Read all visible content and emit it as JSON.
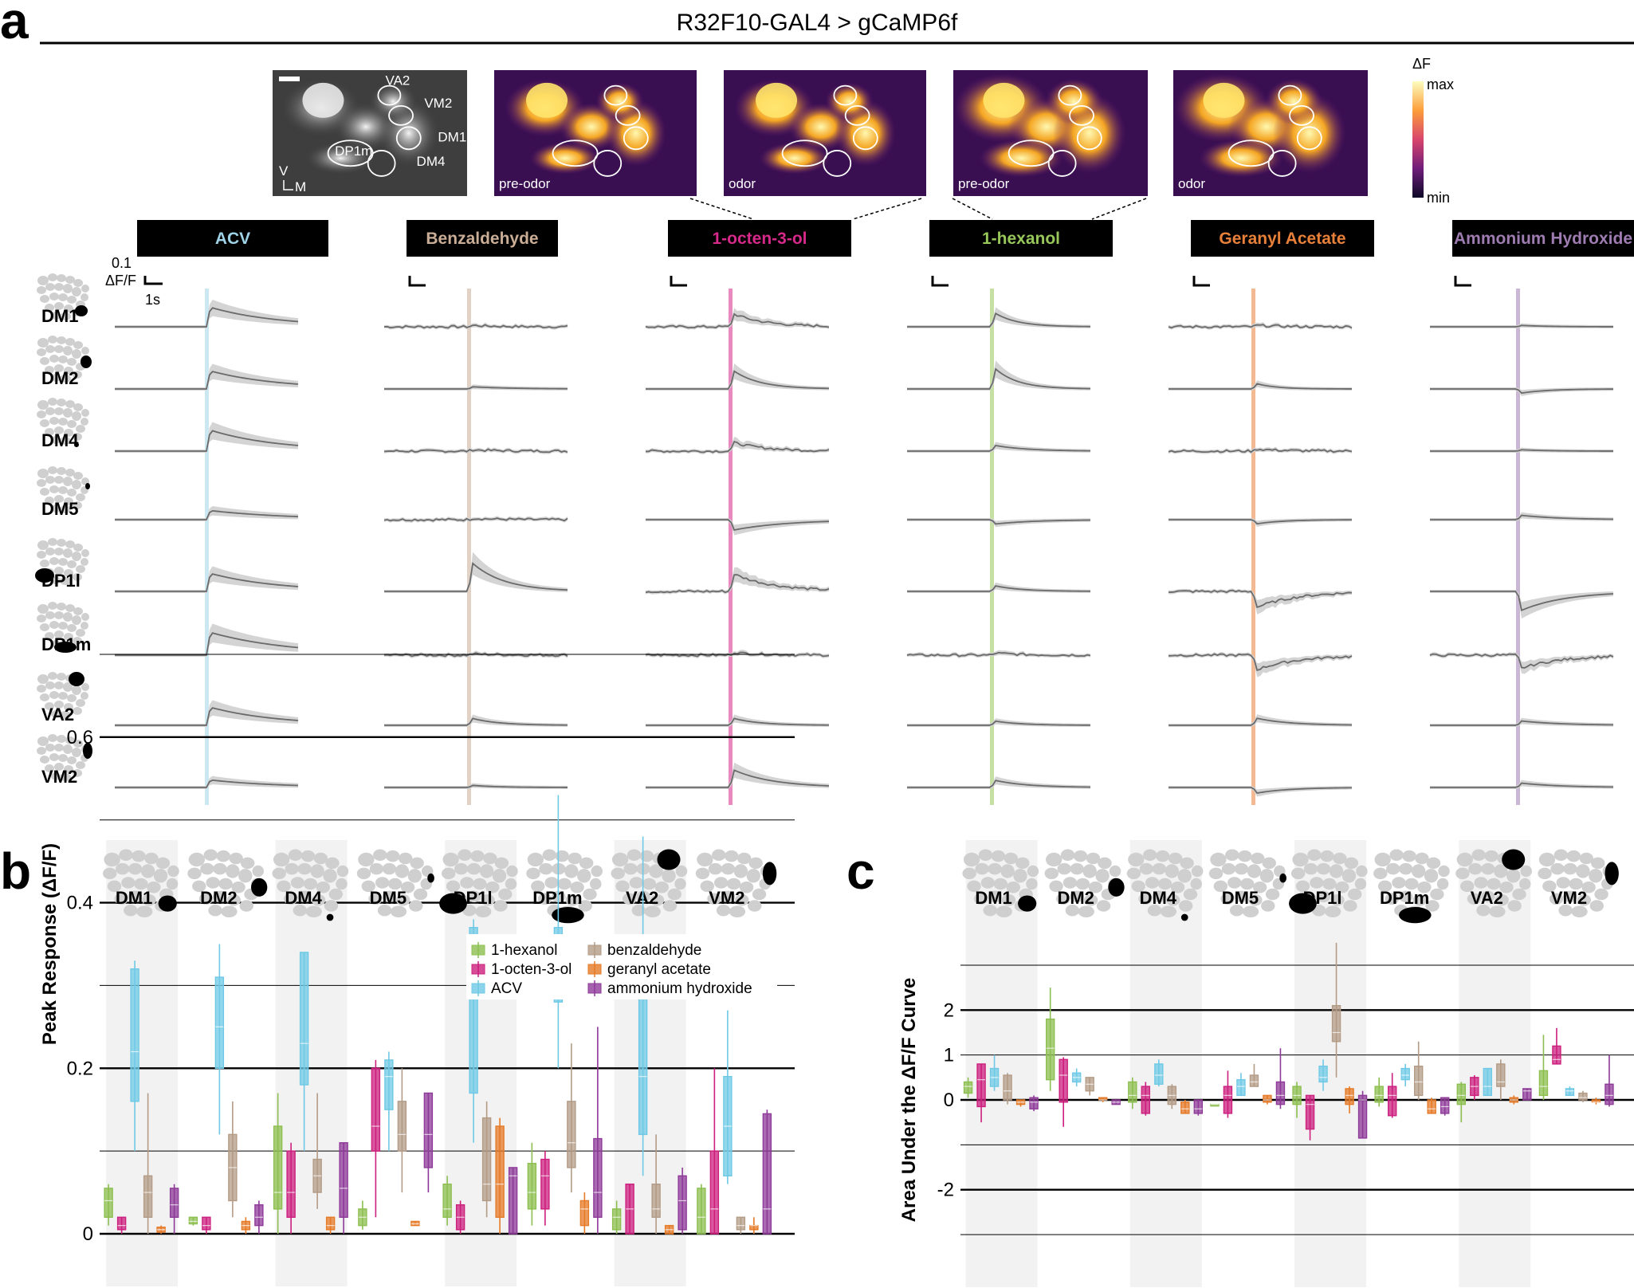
{
  "panel_a": {
    "letter": "a",
    "title": "R32F10-GAL4 > gCaMP6f",
    "images": [
      {
        "caption": "",
        "type": "grayscale"
      },
      {
        "caption": "pre-odor",
        "type": "heat"
      },
      {
        "caption": "odor",
        "type": "heat"
      },
      {
        "caption": "pre-odor",
        "type": "heat"
      },
      {
        "caption": "odor",
        "type": "heat"
      }
    ],
    "roi_labels": [
      "VA2",
      "VM2",
      "DM1",
      "DM4",
      "DP1m"
    ],
    "orientation": {
      "v": "V",
      "m": "M"
    },
    "colorbar": {
      "title": "ΔF",
      "max": "max",
      "min": "min"
    },
    "scalebar": {
      "y": "0.1",
      "y_unit": "ΔF/F",
      "x": "1s"
    },
    "odors": [
      {
        "name": "ACV",
        "color": "#9fd3e8"
      },
      {
        "name": "Benzaldehyde",
        "color": "#c9ad96"
      },
      {
        "name": "1-octen-3-ol",
        "color": "#d6298a"
      },
      {
        "name": "1-hexanol",
        "color": "#97c75a"
      },
      {
        "name": "Geranyl Acetate",
        "color": "#e8803a"
      },
      {
        "name": "Ammonium Hydroxide",
        "color": "#9e7bb0"
      }
    ],
    "glomeruli": [
      "DM1",
      "DM2",
      "DM4",
      "DM5",
      "DP1l",
      "DP1m",
      "VA2",
      "VM2"
    ]
  },
  "panel_b": {
    "letter": "b",
    "ylabel": "Peak Response (ΔF/F)",
    "yticks": [
      "0",
      "0.2",
      "0.4",
      "0.6"
    ],
    "legend": [
      "1-hexanol",
      "1-octen-3-ol",
      "ACV",
      "benzaldehyde",
      "geranyl acetate",
      "ammonium hydroxide"
    ],
    "glomeruli": [
      "DM1",
      "DM2",
      "DM4",
      "DM5",
      "DP1l",
      "DP1m",
      "VA2",
      "VM2"
    ]
  },
  "panel_c": {
    "letter": "c",
    "ylabel": "Area Under the ΔF/F Curve",
    "yticks": [
      "2",
      "1",
      "0",
      "-2"
    ],
    "glomeruli": [
      "DM1",
      "DM2",
      "DM4",
      "DM5",
      "DP1l",
      "DP1m",
      "VA2",
      "VM2"
    ]
  },
  "colors": {
    "hexanol": "#8cbf4f",
    "octenol": "#cc1f7e",
    "acv": "#6fc9e6",
    "benzaldehyde": "#b39b86",
    "geranyl": "#e57a27",
    "ammonium": "#8e3a98"
  },
  "chart_data": [
    {
      "type": "box",
      "title": "Peak Response (ΔF/F)",
      "categories": [
        "DM1",
        "DM2",
        "DM4",
        "DM5",
        "DP1l",
        "DP1m",
        "VA2",
        "VM2"
      ],
      "ylim": [
        0,
        0.7
      ],
      "series": [
        {
          "name": "1-hexanol",
          "q1": [
            0.02,
            0.012,
            0.03,
            0.01,
            0.02,
            0.03,
            0.005,
            0.0
          ],
          "med": [
            0.04,
            0.015,
            0.05,
            0.02,
            0.03,
            0.05,
            0.02,
            0.02
          ],
          "q3": [
            0.055,
            0.02,
            0.13,
            0.03,
            0.06,
            0.085,
            0.03,
            0.055
          ],
          "min": [
            0.01,
            0.01,
            0.0,
            0.005,
            0.01,
            0.01,
            0.0,
            0.0
          ],
          "max": [
            0.06,
            0.02,
            0.17,
            0.04,
            0.07,
            0.11,
            0.04,
            0.06
          ]
        },
        {
          "name": "1-octen-3-ol",
          "q1": [
            0.005,
            0.005,
            0.02,
            0.1,
            0.005,
            0.03,
            0.0,
            0.0
          ],
          "med": [
            0.01,
            0.01,
            0.05,
            0.13,
            0.02,
            0.07,
            0.03,
            0.03
          ],
          "q3": [
            0.02,
            0.02,
            0.1,
            0.2,
            0.035,
            0.09,
            0.06,
            0.1
          ],
          "min": [
            0.0,
            0.0,
            0.0,
            0.02,
            0.0,
            0.01,
            0.0,
            0.0
          ],
          "max": [
            0.02,
            0.02,
            0.11,
            0.21,
            0.04,
            0.1,
            0.06,
            0.2
          ]
        },
        {
          "name": "ACV",
          "q1": [
            0.16,
            0.2,
            0.18,
            0.15,
            0.17,
            0.28,
            0.12,
            0.07
          ],
          "med": [
            0.22,
            0.25,
            0.23,
            0.19,
            0.29,
            0.33,
            0.19,
            0.13
          ],
          "q3": [
            0.32,
            0.31,
            0.34,
            0.21,
            0.37,
            0.37,
            0.36,
            0.19
          ],
          "min": [
            0.1,
            0.12,
            0.1,
            0.1,
            0.11,
            0.2,
            0.07,
            0.06
          ],
          "max": [
            0.33,
            0.35,
            0.34,
            0.22,
            0.38,
            0.53,
            0.48,
            0.27
          ]
        },
        {
          "name": "benzaldehyde",
          "q1": [
            0.02,
            0.04,
            0.05,
            0.1,
            0.04,
            0.08,
            0.02,
            0.005
          ],
          "med": [
            0.05,
            0.08,
            0.07,
            0.12,
            0.06,
            0.11,
            0.03,
            0.01
          ],
          "q3": [
            0.07,
            0.12,
            0.09,
            0.16,
            0.14,
            0.16,
            0.06,
            0.02
          ],
          "min": [
            0.0,
            0.02,
            0.03,
            0.05,
            0.02,
            0.05,
            0.0,
            0.0
          ],
          "max": [
            0.17,
            0.16,
            0.17,
            0.2,
            0.16,
            0.23,
            0.12,
            0.02
          ]
        },
        {
          "name": "geranyl acetate",
          "q1": [
            0.002,
            0.005,
            0.005,
            0.01,
            0.02,
            0.01,
            0.0,
            0.005
          ],
          "med": [
            0.005,
            0.01,
            0.01,
            0.012,
            0.06,
            0.03,
            0.005,
            0.01
          ],
          "q3": [
            0.008,
            0.015,
            0.02,
            0.015,
            0.13,
            0.04,
            0.01,
            0.01
          ],
          "min": [
            0.0,
            0.0,
            0.0,
            0.01,
            0.0,
            0.0,
            0.0,
            0.0
          ],
          "max": [
            0.01,
            0.02,
            0.02,
            0.015,
            0.14,
            0.05,
            0.01,
            0.02
          ]
        },
        {
          "name": "ammonium hydroxide",
          "q1": [
            0.02,
            0.01,
            0.02,
            0.08,
            0.0,
            0.02,
            0.005,
            0.0
          ],
          "med": [
            0.035,
            0.02,
            0.055,
            0.12,
            0.07,
            0.05,
            0.04,
            0.03
          ],
          "q3": [
            0.055,
            0.035,
            0.11,
            0.17,
            0.08,
            0.115,
            0.07,
            0.145
          ],
          "min": [
            0.0,
            0.0,
            0.0,
            0.05,
            0.0,
            0.0,
            0.0,
            0.0
          ],
          "max": [
            0.06,
            0.04,
            0.11,
            0.17,
            0.08,
            0.25,
            0.08,
            0.15
          ]
        }
      ]
    },
    {
      "type": "box",
      "title": "Area Under the ΔF/F Curve",
      "categories": [
        "DM1",
        "DM2",
        "DM4",
        "DM5",
        "DP1l",
        "DP1m",
        "VA2",
        "VM2"
      ],
      "ylim": [
        -3,
        3
      ],
      "series": [
        {
          "name": "1-hexanol",
          "q1": [
            0.15,
            0.45,
            -0.05,
            -0.1,
            -0.1,
            -0.05,
            -0.1,
            0.1
          ],
          "med": [
            0.3,
            1.15,
            0.1,
            -0.1,
            0.1,
            0.1,
            0.1,
            0.3
          ],
          "q3": [
            0.4,
            1.8,
            0.4,
            -0.1,
            0.3,
            0.3,
            0.35,
            0.65
          ],
          "min": [
            0.05,
            0.2,
            -0.2,
            -0.1,
            -0.4,
            -0.15,
            -0.5,
            0.0
          ],
          "max": [
            0.5,
            2.5,
            0.5,
            -0.1,
            0.4,
            0.5,
            0.4,
            1.45
          ]
        },
        {
          "name": "1-octen-3-ol",
          "q1": [
            -0.15,
            -0.05,
            -0.3,
            -0.3,
            -0.65,
            -0.35,
            0.1,
            0.8
          ],
          "med": [
            0.45,
            0.55,
            0.1,
            0.1,
            -0.1,
            0.1,
            0.3,
            0.9
          ],
          "q3": [
            0.8,
            0.9,
            0.3,
            0.3,
            0.1,
            0.3,
            0.5,
            1.2
          ],
          "min": [
            -0.5,
            -0.6,
            -0.35,
            -0.4,
            -0.9,
            -0.4,
            0.0,
            0.8
          ],
          "max": [
            0.8,
            0.95,
            0.4,
            0.65,
            0.1,
            0.6,
            0.55,
            1.6
          ]
        },
        {
          "name": "ACV",
          "q1": [
            0.3,
            0.4,
            0.35,
            0.1,
            0.4,
            0.45,
            0.1,
            0.1
          ],
          "med": [
            0.5,
            0.5,
            0.55,
            0.3,
            0.5,
            0.55,
            0.3,
            0.2
          ],
          "q3": [
            0.7,
            0.6,
            0.8,
            0.45,
            0.75,
            0.7,
            0.7,
            0.25
          ],
          "min": [
            0.2,
            0.3,
            0.3,
            0.1,
            0.2,
            0.3,
            0.1,
            0.1
          ],
          "max": [
            1.0,
            0.7,
            0.9,
            0.6,
            0.9,
            0.8,
            0.7,
            0.3
          ]
        },
        {
          "name": "benzaldehyde",
          "q1": [
            0.0,
            0.2,
            -0.1,
            0.3,
            1.3,
            0.1,
            0.3,
            0.0
          ],
          "med": [
            0.2,
            0.35,
            0.1,
            0.4,
            1.5,
            0.4,
            0.4,
            0.05
          ],
          "q3": [
            0.55,
            0.5,
            0.3,
            0.55,
            2.1,
            0.75,
            0.8,
            0.15
          ],
          "min": [
            -0.1,
            0.1,
            -0.2,
            0.3,
            0.5,
            0.0,
            0.0,
            -0.05
          ],
          "max": [
            0.6,
            0.5,
            0.35,
            0.8,
            3.5,
            1.3,
            0.9,
            0.2
          ]
        },
        {
          "name": "geranyl acetate",
          "q1": [
            -0.1,
            0.0,
            -0.3,
            -0.05,
            -0.1,
            -0.3,
            -0.05,
            -0.05
          ],
          "med": [
            -0.05,
            0.0,
            -0.2,
            0.0,
            0.1,
            -0.2,
            0.0,
            -0.05
          ],
          "q3": [
            0.0,
            0.05,
            -0.05,
            0.1,
            0.25,
            0.0,
            0.05,
            0.0
          ],
          "min": [
            -0.15,
            -0.05,
            -0.3,
            -0.1,
            -0.3,
            -0.3,
            -0.1,
            -0.1
          ],
          "max": [
            0.0,
            0.05,
            0.0,
            0.1,
            0.3,
            0.05,
            0.1,
            0.05
          ]
        },
        {
          "name": "ammonium hydroxide",
          "q1": [
            -0.2,
            -0.1,
            -0.3,
            -0.1,
            -0.85,
            -0.3,
            0.0,
            -0.1
          ],
          "med": [
            -0.05,
            -0.05,
            -0.2,
            0.1,
            0.0,
            -0.15,
            0.2,
            0.1
          ],
          "q3": [
            0.05,
            0.0,
            0.0,
            0.4,
            0.1,
            0.05,
            0.25,
            0.35
          ],
          "min": [
            -0.25,
            -0.1,
            -0.35,
            -0.2,
            -0.85,
            -0.35,
            0.0,
            -0.15
          ],
          "max": [
            0.1,
            0.0,
            0.0,
            1.15,
            0.2,
            0.05,
            0.25,
            1.0
          ]
        }
      ]
    }
  ]
}
